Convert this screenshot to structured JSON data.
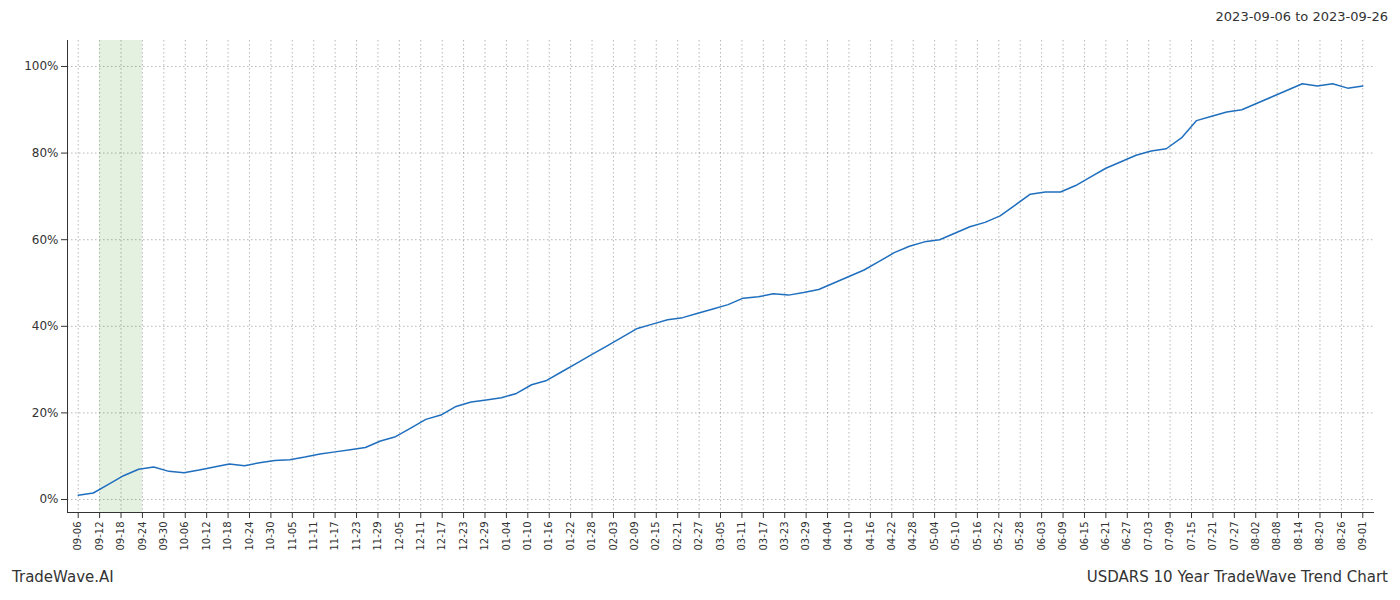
{
  "chart_data": {
    "type": "line",
    "title": "USDARS 10 Year TradeWave Trend Chart",
    "subtitle": "2023-09-06 to 2023-09-26",
    "annotations": [
      "TradeWave.AI"
    ],
    "color": "#1f6fbe",
    "grid": true,
    "x": [
      0,
      0.705882,
      1.411765,
      2.117647,
      2.823529,
      3.529412,
      4.235294,
      4.941176,
      5.647059,
      6.352941,
      7.058824,
      7.764706,
      8.470588,
      9.176471,
      9.882353,
      10.588235,
      11.294118,
      12,
      12.705882,
      13.411765,
      14.117647,
      14.823529,
      15.529412,
      16.235294,
      16.941176,
      17.647059,
      18.352941,
      19.058824,
      19.764706,
      20.470588,
      21.176471,
      21.882353,
      22.588235,
      23.294118,
      24,
      24.705882,
      25.411765,
      26.117647,
      26.823529,
      27.529412,
      28.235294,
      28.941176,
      29.647059,
      30.352941,
      31.058824,
      31.764706,
      32.470588,
      33.176471,
      33.882353,
      34.588235,
      35.294118,
      36,
      36.705882,
      37.411765,
      38.117647,
      38.823529,
      39.529412,
      40.235294,
      40.941176,
      41.647059,
      42.352941,
      43.058824,
      43.764706,
      44.470588,
      45.176471,
      45.882353,
      46.588235,
      47.294118,
      48,
      48.705882,
      49.411765,
      50.117647,
      50.823529,
      51.529412,
      52.235294,
      52.941176,
      53.647059,
      54.352941,
      55.058824,
      55.764706,
      56.470588,
      57.176471,
      57.882353,
      58.588235,
      59.294118,
      60
    ],
    "values": [
      1.0,
      1.5,
      3.5,
      5.5,
      7.0,
      7.5,
      6.5,
      6.2,
      6.8,
      7.5,
      8.2,
      7.8,
      8.5,
      9.0,
      9.2,
      9.8,
      10.5,
      11.0,
      11.5,
      12.0,
      13.5,
      14.5,
      16.5,
      18.5,
      19.5,
      21.5,
      22.5,
      23.0,
      23.5,
      24.5,
      26.5,
      27.5,
      29.5,
      31.5,
      33.5,
      35.5,
      37.5,
      39.5,
      40.5,
      41.5,
      42.0,
      43.0,
      44.0,
      45.0,
      46.5,
      46.8,
      47.5,
      47.2,
      47.8,
      48.5,
      50.0,
      51.5,
      53.0,
      55.0,
      57.0,
      58.5,
      59.5,
      60.0,
      61.5,
      63.0,
      64.0,
      65.5,
      68.0,
      70.5,
      71.0,
      71.0,
      72.5,
      74.5,
      76.5,
      78.0,
      79.5,
      80.5,
      81.0,
      83.5,
      87.5,
      88.5,
      89.5,
      90.0,
      91.5,
      93.0,
      94.5,
      96.0,
      95.5,
      96.0,
      95.0,
      95.5
    ],
    "xlim": [
      -0.5,
      60.5
    ],
    "xticks": [
      {
        "value": 0,
        "label": "09-06"
      },
      {
        "value": 1,
        "label": "09-12"
      },
      {
        "value": 2,
        "label": "09-18"
      },
      {
        "value": 3,
        "label": "09-24"
      },
      {
        "value": 4,
        "label": "09-30"
      },
      {
        "value": 5,
        "label": "10-06"
      },
      {
        "value": 6,
        "label": "10-12"
      },
      {
        "value": 7,
        "label": "10-18"
      },
      {
        "value": 8,
        "label": "10-24"
      },
      {
        "value": 9,
        "label": "10-30"
      },
      {
        "value": 10,
        "label": "11-05"
      },
      {
        "value": 11,
        "label": "11-11"
      },
      {
        "value": 12,
        "label": "11-17"
      },
      {
        "value": 13,
        "label": "11-23"
      },
      {
        "value": 14,
        "label": "11-29"
      },
      {
        "value": 15,
        "label": "12-05"
      },
      {
        "value": 16,
        "label": "12-11"
      },
      {
        "value": 17,
        "label": "12-17"
      },
      {
        "value": 18,
        "label": "12-23"
      },
      {
        "value": 19,
        "label": "12-29"
      },
      {
        "value": 20,
        "label": "01-04"
      },
      {
        "value": 21,
        "label": "01-10"
      },
      {
        "value": 22,
        "label": "01-16"
      },
      {
        "value": 23,
        "label": "01-22"
      },
      {
        "value": 24,
        "label": "01-28"
      },
      {
        "value": 25,
        "label": "02-03"
      },
      {
        "value": 26,
        "label": "02-09"
      },
      {
        "value": 27,
        "label": "02-15"
      },
      {
        "value": 28,
        "label": "02-21"
      },
      {
        "value": 29,
        "label": "02-27"
      },
      {
        "value": 30,
        "label": "03-05"
      },
      {
        "value": 31,
        "label": "03-11"
      },
      {
        "value": 32,
        "label": "03-17"
      },
      {
        "value": 33,
        "label": "03-23"
      },
      {
        "value": 34,
        "label": "03-29"
      },
      {
        "value": 35,
        "label": "04-04"
      },
      {
        "value": 36,
        "label": "04-10"
      },
      {
        "value": 37,
        "label": "04-16"
      },
      {
        "value": 38,
        "label": "04-22"
      },
      {
        "value": 39,
        "label": "04-28"
      },
      {
        "value": 40,
        "label": "05-04"
      },
      {
        "value": 41,
        "label": "05-10"
      },
      {
        "value": 42,
        "label": "05-16"
      },
      {
        "value": 43,
        "label": "05-22"
      },
      {
        "value": 44,
        "label": "05-28"
      },
      {
        "value": 45,
        "label": "06-03"
      },
      {
        "value": 46,
        "label": "06-09"
      },
      {
        "value": 47,
        "label": "06-15"
      },
      {
        "value": 48,
        "label": "06-21"
      },
      {
        "value": 49,
        "label": "06-27"
      },
      {
        "value": 50,
        "label": "07-03"
      },
      {
        "value": 51,
        "label": "07-09"
      },
      {
        "value": 52,
        "label": "07-15"
      },
      {
        "value": 53,
        "label": "07-21"
      },
      {
        "value": 54,
        "label": "07-27"
      },
      {
        "value": 55,
        "label": "08-02"
      },
      {
        "value": 56,
        "label": "08-08"
      },
      {
        "value": 57,
        "label": "08-14"
      },
      {
        "value": 58,
        "label": "08-20"
      },
      {
        "value": 59,
        "label": "08-26"
      },
      {
        "value": 60,
        "label": "09-01"
      }
    ],
    "ylim": [
      -3,
      106
    ],
    "yticks": [
      {
        "value": 0,
        "label": "0%"
      },
      {
        "value": 20,
        "label": "20%"
      },
      {
        "value": 40,
        "label": "40%"
      },
      {
        "value": 60,
        "label": "60%"
      },
      {
        "value": 80,
        "label": "80%"
      },
      {
        "value": 100,
        "label": "100%"
      }
    ],
    "highlight": {
      "from": 1,
      "to": 3,
      "color": "#d6e8d0"
    }
  }
}
